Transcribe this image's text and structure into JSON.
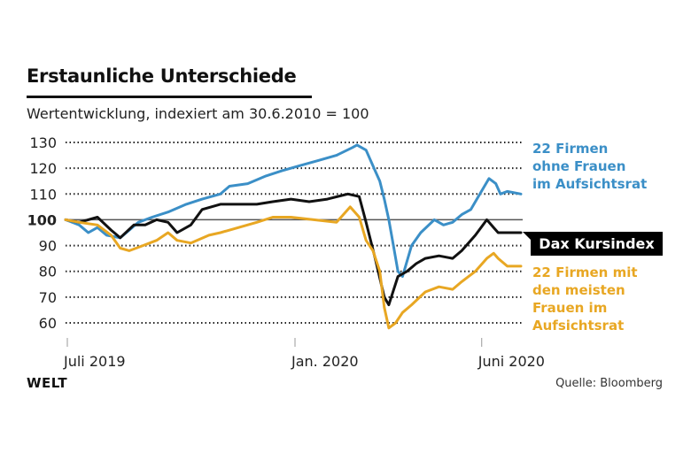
{
  "header": {
    "title": "Erstaunliche Unterschiede",
    "subtitle": "Wertentwicklung, indexiert am 30.6.2010 = 100"
  },
  "footer": {
    "brand": "WELT",
    "source": "Quelle: Bloomberg"
  },
  "colors": {
    "blue": "#3b8fc7",
    "black": "#111111",
    "orange": "#e8a723",
    "grid": "#333333"
  },
  "labels": {
    "blue": [
      "22 Firmen",
      "ohne Frauen",
      "im Aufsichtsrat"
    ],
    "dax": "Dax Kursindex",
    "orange": [
      "22 Firmen mit",
      "den meisten",
      "Frauen im",
      "Aufsichtsrat"
    ]
  },
  "chart_data": {
    "type": "line",
    "title": "Erstaunliche Unterschiede",
    "subtitle": "Wertentwicklung, indexiert am 30.6.2010 = 100",
    "xlabel": "",
    "ylabel": "",
    "ylim": [
      60,
      130
    ],
    "yticks": [
      130,
      120,
      110,
      100,
      90,
      80,
      70,
      60
    ],
    "baseline": 100,
    "grid": true,
    "x_ticks": [
      {
        "label": "Juli 2019",
        "t": 0.0
      },
      {
        "label": "Jan. 2020",
        "t": 0.5
      },
      {
        "label": "Juni 2020",
        "t": 0.91
      }
    ],
    "x_domain_note": "t = fraction of time from start (Juli 2019) to end (~Juni 2020)",
    "series": [
      {
        "name": "22 Firmen ohne Frauen im Aufsichtsrat",
        "color_key": "blue",
        "points": [
          [
            0,
            100
          ],
          [
            0.03,
            98
          ],
          [
            0.05,
            95
          ],
          [
            0.07,
            97
          ],
          [
            0.09,
            94
          ],
          [
            0.12,
            93
          ],
          [
            0.14,
            96
          ],
          [
            0.16,
            99
          ],
          [
            0.19,
            101
          ],
          [
            0.225,
            103
          ],
          [
            0.265,
            106
          ],
          [
            0.3,
            108
          ],
          [
            0.34,
            110
          ],
          [
            0.36,
            113
          ],
          [
            0.4,
            114
          ],
          [
            0.44,
            117
          ],
          [
            0.475,
            119
          ],
          [
            0.515,
            121
          ],
          [
            0.555,
            123
          ],
          [
            0.595,
            125
          ],
          [
            0.63,
            128
          ],
          [
            0.64,
            129
          ],
          [
            0.66,
            127
          ],
          [
            0.68,
            119
          ],
          [
            0.69,
            115
          ],
          [
            0.7,
            108
          ],
          [
            0.71,
            100
          ],
          [
            0.72,
            90
          ],
          [
            0.73,
            80
          ],
          [
            0.74,
            78
          ],
          [
            0.76,
            90
          ],
          [
            0.78,
            95
          ],
          [
            0.81,
            100
          ],
          [
            0.83,
            98
          ],
          [
            0.85,
            99
          ],
          [
            0.87,
            102
          ],
          [
            0.89,
            104
          ],
          [
            0.91,
            110
          ],
          [
            0.93,
            116
          ],
          [
            0.945,
            114
          ],
          [
            0.955,
            110
          ],
          [
            0.97,
            111
          ],
          [
            1.0,
            110
          ]
        ]
      },
      {
        "name": "Dax Kursindex",
        "color_key": "black",
        "points": [
          [
            0,
            100
          ],
          [
            0.03,
            99
          ],
          [
            0.07,
            101
          ],
          [
            0.1,
            96
          ],
          [
            0.12,
            93
          ],
          [
            0.15,
            98
          ],
          [
            0.175,
            98
          ],
          [
            0.2,
            100
          ],
          [
            0.225,
            99
          ],
          [
            0.245,
            95
          ],
          [
            0.275,
            98
          ],
          [
            0.3,
            104
          ],
          [
            0.34,
            106
          ],
          [
            0.38,
            106
          ],
          [
            0.42,
            106
          ],
          [
            0.455,
            107
          ],
          [
            0.495,
            108
          ],
          [
            0.535,
            107
          ],
          [
            0.575,
            108
          ],
          [
            0.62,
            110
          ],
          [
            0.645,
            109
          ],
          [
            0.66,
            99
          ],
          [
            0.68,
            85
          ],
          [
            0.7,
            70
          ],
          [
            0.71,
            67
          ],
          [
            0.73,
            78
          ],
          [
            0.75,
            80
          ],
          [
            0.77,
            83
          ],
          [
            0.79,
            85
          ],
          [
            0.82,
            86
          ],
          [
            0.85,
            85
          ],
          [
            0.87,
            88
          ],
          [
            0.9,
            94
          ],
          [
            0.925,
            100
          ],
          [
            0.94,
            97
          ],
          [
            0.95,
            95
          ],
          [
            0.98,
            95
          ],
          [
            1.0,
            95
          ]
        ]
      },
      {
        "name": "22 Firmen mit den meisten Frauen im Aufsichtsrat",
        "color_key": "orange",
        "points": [
          [
            0,
            100
          ],
          [
            0.03,
            99
          ],
          [
            0.07,
            98
          ],
          [
            0.1,
            94
          ],
          [
            0.12,
            89
          ],
          [
            0.14,
            88
          ],
          [
            0.17,
            90
          ],
          [
            0.2,
            92
          ],
          [
            0.225,
            95
          ],
          [
            0.245,
            92
          ],
          [
            0.275,
            91
          ],
          [
            0.315,
            94
          ],
          [
            0.34,
            95
          ],
          [
            0.38,
            97
          ],
          [
            0.42,
            99
          ],
          [
            0.455,
            101
          ],
          [
            0.495,
            101
          ],
          [
            0.545,
            100
          ],
          [
            0.595,
            99
          ],
          [
            0.625,
            105
          ],
          [
            0.645,
            101
          ],
          [
            0.66,
            92
          ],
          [
            0.675,
            88
          ],
          [
            0.69,
            80
          ],
          [
            0.7,
            66
          ],
          [
            0.71,
            58
          ],
          [
            0.725,
            60
          ],
          [
            0.74,
            64
          ],
          [
            0.76,
            67
          ],
          [
            0.79,
            72
          ],
          [
            0.82,
            74
          ],
          [
            0.85,
            73
          ],
          [
            0.87,
            76
          ],
          [
            0.9,
            80
          ],
          [
            0.925,
            85
          ],
          [
            0.94,
            87
          ],
          [
            0.95,
            85
          ],
          [
            0.97,
            82
          ],
          [
            1.0,
            82
          ]
        ]
      }
    ]
  }
}
